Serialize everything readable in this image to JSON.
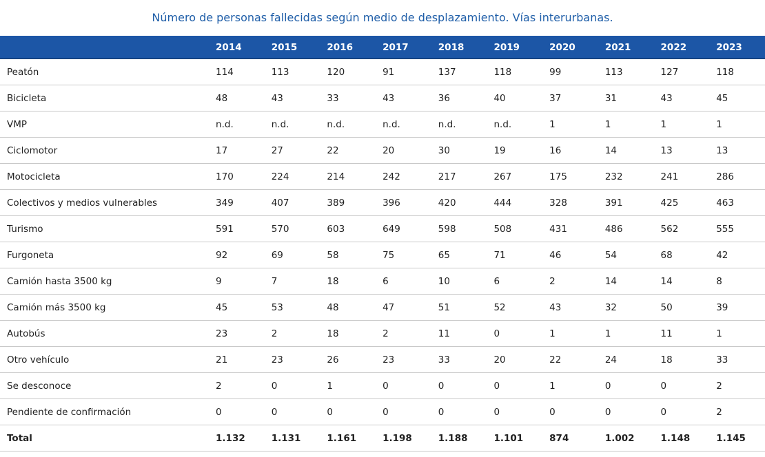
{
  "table": {
    "caption": "Número de personas fallecidas según medio de desplazamiento. Vías interurbanas.",
    "corner_label": "",
    "years": [
      "2014",
      "2015",
      "2016",
      "2017",
      "2018",
      "2019",
      "2020",
      "2021",
      "2022",
      "2023"
    ],
    "rows": [
      {
        "label": "Peatón",
        "values": [
          "114",
          "113",
          "120",
          "91",
          "137",
          "118",
          "99",
          "113",
          "127",
          "118"
        ]
      },
      {
        "label": "Bicicleta",
        "values": [
          "48",
          "43",
          "33",
          "43",
          "36",
          "40",
          "37",
          "31",
          "43",
          "45"
        ]
      },
      {
        "label": "VMP",
        "values": [
          "n.d.",
          "n.d.",
          "n.d.",
          "n.d.",
          "n.d.",
          "n.d.",
          "1",
          "1",
          "1",
          "1"
        ]
      },
      {
        "label": "Ciclomotor",
        "values": [
          "17",
          "27",
          "22",
          "20",
          "30",
          "19",
          "16",
          "14",
          "13",
          "13"
        ]
      },
      {
        "label": "Motocicleta",
        "values": [
          "170",
          "224",
          "214",
          "242",
          "217",
          "267",
          "175",
          "232",
          "241",
          "286"
        ]
      },
      {
        "label": "Colectivos y medios vulnerables",
        "values": [
          "349",
          "407",
          "389",
          "396",
          "420",
          "444",
          "328",
          "391",
          "425",
          "463"
        ]
      },
      {
        "label": "Turismo",
        "values": [
          "591",
          "570",
          "603",
          "649",
          "598",
          "508",
          "431",
          "486",
          "562",
          "555"
        ]
      },
      {
        "label": "Furgoneta",
        "values": [
          "92",
          "69",
          "58",
          "75",
          "65",
          "71",
          "46",
          "54",
          "68",
          "42"
        ]
      },
      {
        "label": "Camión hasta 3500 kg",
        "values": [
          "9",
          "7",
          "18",
          "6",
          "10",
          "6",
          "2",
          "14",
          "14",
          "8"
        ]
      },
      {
        "label": "Camión más 3500 kg",
        "values": [
          "45",
          "53",
          "48",
          "47",
          "51",
          "52",
          "43",
          "32",
          "50",
          "39"
        ]
      },
      {
        "label": "Autobús",
        "values": [
          "23",
          "2",
          "18",
          "2",
          "11",
          "0",
          "1",
          "1",
          "11",
          "1"
        ]
      },
      {
        "label": "Otro vehículo",
        "values": [
          "21",
          "23",
          "26",
          "23",
          "33",
          "20",
          "22",
          "24",
          "18",
          "33"
        ]
      },
      {
        "label": "Se desconoce",
        "values": [
          "2",
          "0",
          "1",
          "0",
          "0",
          "0",
          "1",
          "0",
          "0",
          "2"
        ]
      },
      {
        "label": "Pendiente de confirmación",
        "values": [
          "0",
          "0",
          "0",
          "0",
          "0",
          "0",
          "0",
          "0",
          "0",
          "2"
        ]
      },
      {
        "label": "Total",
        "values": [
          "1.132",
          "1.131",
          "1.161",
          "1.198",
          "1.188",
          "1.101",
          "874",
          "1.002",
          "1.148",
          "1.145"
        ],
        "is_total": true
      }
    ]
  },
  "colors": {
    "header_bg": "#1c56a6",
    "caption_text": "#1f5ea8",
    "row_divider": "#c9c9c9"
  }
}
